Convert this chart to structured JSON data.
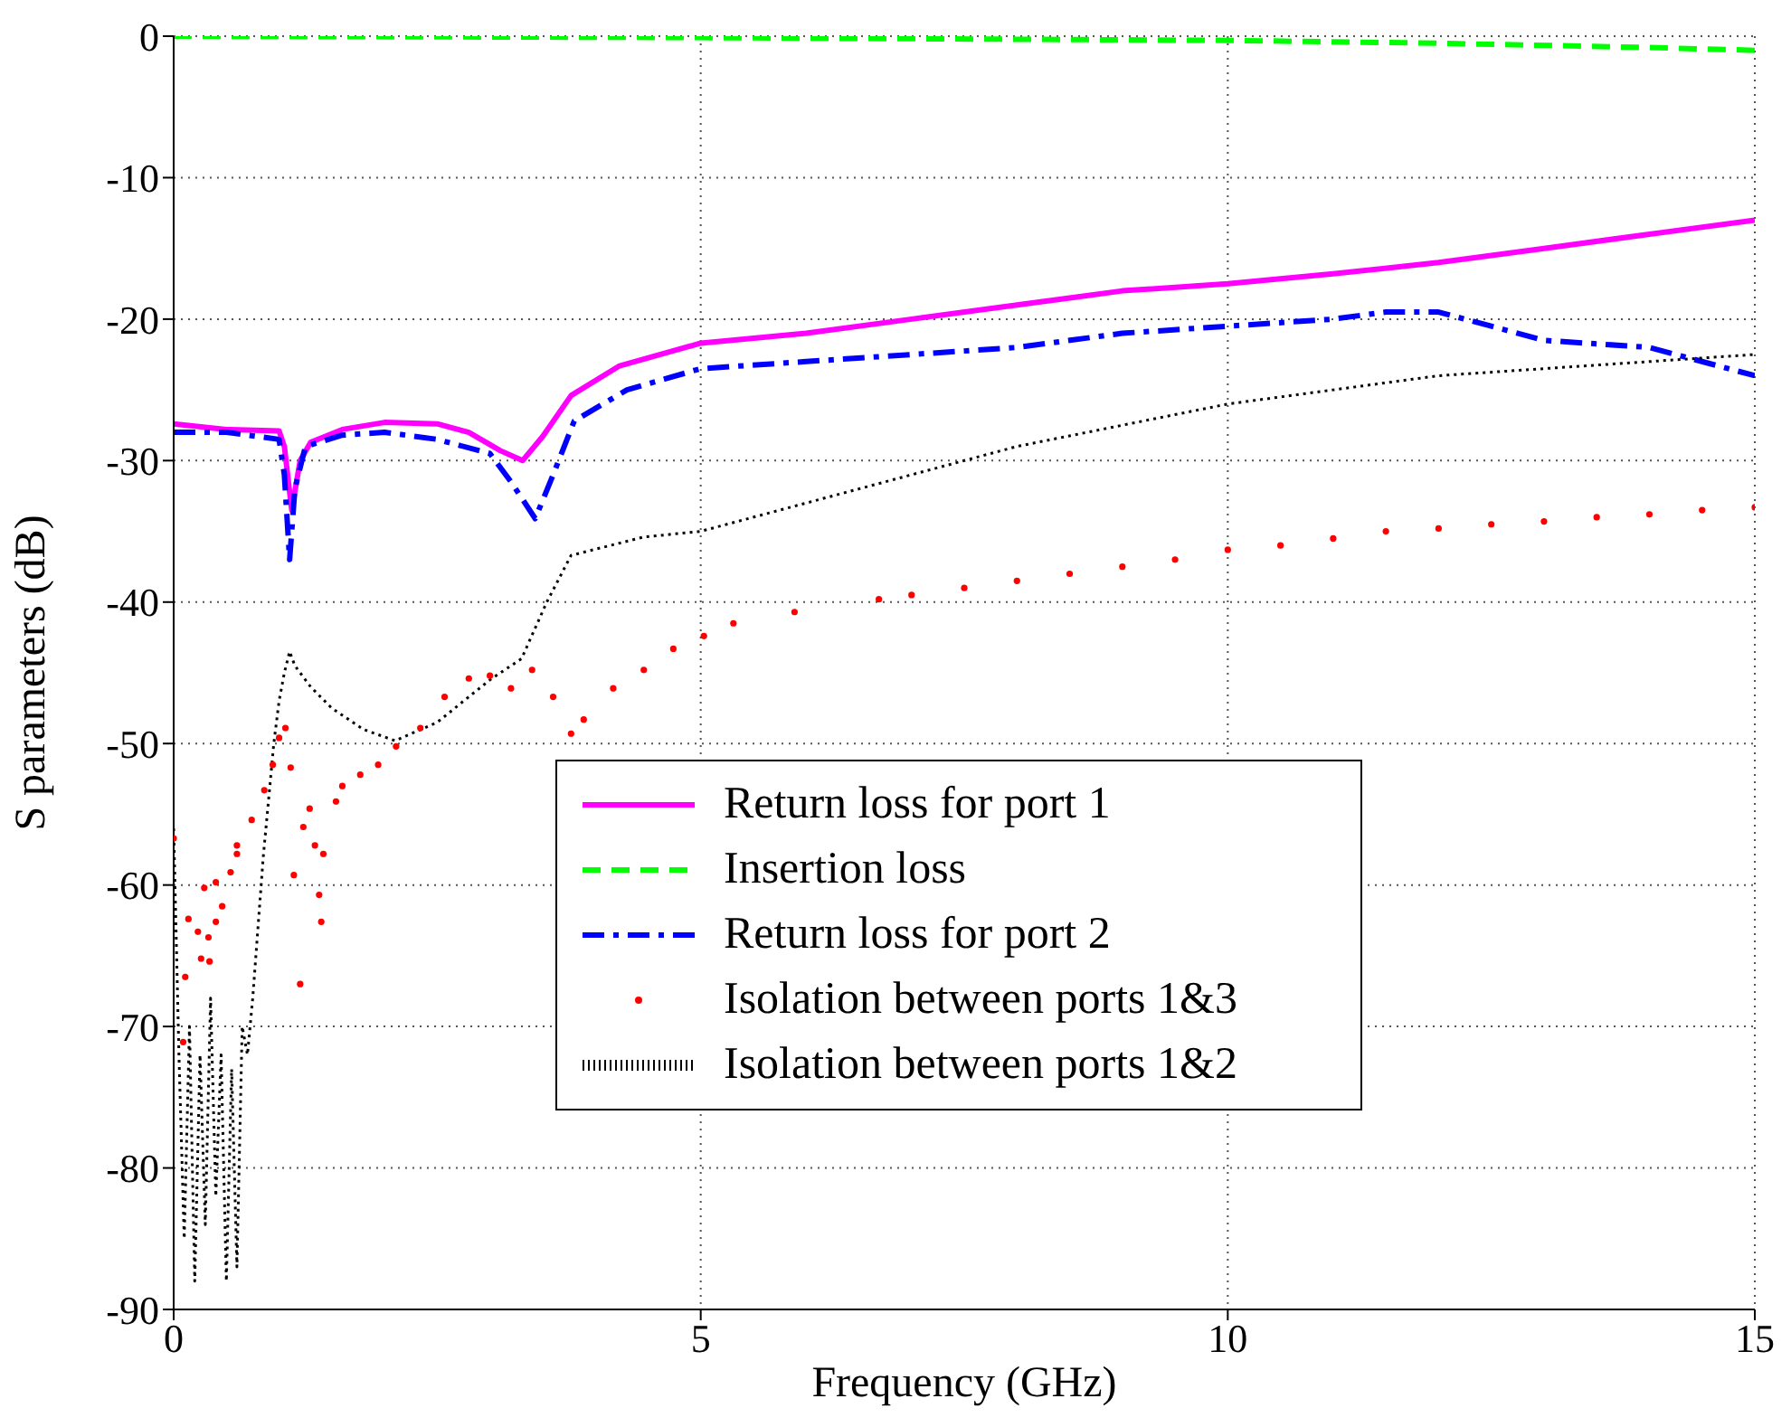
{
  "chart_data": {
    "type": "line",
    "xlabel": "Frequency (GHz)",
    "ylabel": "S parameters (dB)",
    "xlim": [
      0,
      15
    ],
    "xticks": [
      0,
      5,
      10,
      15
    ],
    "ylim": [
      -90,
      0
    ],
    "yticks": [
      -90,
      -80,
      -70,
      -60,
      -50,
      -40,
      -30,
      -20,
      -10,
      0
    ],
    "grid": true,
    "legend": "bottom",
    "series": [
      {
        "name": "Return loss for port 1",
        "line_style": "solid",
        "color": "#ff00ff",
        "x": [
          0,
          0.5,
          1.0,
          1.05,
          1.12,
          1.2,
          1.3,
          1.6,
          2.0,
          2.5,
          2.8,
          3.1,
          3.31,
          3.5,
          3.77,
          4.23,
          5,
          6,
          7,
          8,
          8.5,
          9,
          10,
          11,
          12,
          13,
          14,
          15
        ],
        "values": [
          -27.4,
          -27.8,
          -27.9,
          -29,
          -33.5,
          -30,
          -28.7,
          -27.8,
          -27.3,
          -27.4,
          -28,
          -29.3,
          -30,
          -28.3,
          -25.4,
          -23.3,
          -21.7,
          -21,
          -20,
          -19,
          -18.5,
          -18,
          -17.5,
          -16.8,
          -16,
          -15,
          -14,
          -13
        ]
      },
      {
        "name": "Insertion loss",
        "line_style": "dashed",
        "color": "#00ff00",
        "x": [
          0,
          5,
          10,
          12,
          14,
          15
        ],
        "values": [
          0,
          -0.1,
          -0.3,
          -0.5,
          -0.8,
          -1
        ]
      },
      {
        "name": "Return loss for port 2",
        "line_style": "dashdot",
        "color": "#0000ff",
        "x": [
          0,
          0.5,
          1.0,
          1.05,
          1.1,
          1.15,
          1.25,
          1.6,
          2.0,
          2.5,
          3.0,
          3.2,
          3.43,
          3.6,
          3.8,
          4.3,
          5,
          6,
          7,
          8,
          9,
          10,
          11,
          11.5,
          12,
          12.5,
          13,
          14,
          15
        ],
        "values": [
          -28,
          -28,
          -28.5,
          -31,
          -37,
          -32,
          -29,
          -28.2,
          -28,
          -28.5,
          -29.5,
          -31.5,
          -34.1,
          -31,
          -27.2,
          -25,
          -23.5,
          -23,
          -22.5,
          -22,
          -21,
          -20.5,
          -20,
          -19.5,
          -19.5,
          -20.5,
          -21.5,
          -22,
          -24
        ]
      },
      {
        "name": "Isolation between ports 1&3",
        "type": "scatter",
        "marker": "circle",
        "color": "#ff0000",
        "x": [
          0,
          0.09,
          0.11,
          0.14,
          0.23,
          0.26,
          0.29,
          0.33,
          0.34,
          0.4,
          0.4,
          0.46,
          0.54,
          0.6,
          0.6,
          0.74,
          0.86,
          0.94,
          1.0,
          1.06,
          1.11,
          1.14,
          1.2,
          1.23,
          1.29,
          1.34,
          1.38,
          1.4,
          1.42,
          1.54,
          1.6,
          1.77,
          1.94,
          2.11,
          2.34,
          2.57,
          2.8,
          3.0,
          3.2,
          3.4,
          3.6,
          3.77,
          3.89,
          4.17,
          4.46,
          4.74,
          5.03,
          5.31,
          5.89,
          6.69,
          7,
          7.5,
          8,
          8.5,
          9,
          9.5,
          10,
          10.5,
          11,
          11.5,
          12,
          12.5,
          13,
          13.5,
          14,
          14.5,
          15
        ],
        "values": [
          -56.7,
          -71.1,
          -66.5,
          -62.4,
          -63.3,
          -65.2,
          -60.2,
          -63.7,
          -65.4,
          -62.6,
          -59.8,
          -61.5,
          -59.1,
          -57.8,
          -57.2,
          -55.4,
          -53.3,
          -51.5,
          -49.6,
          -48.9,
          -51.7,
          -59.3,
          -67,
          -55.9,
          -54.6,
          -57.2,
          -60.7,
          -62.6,
          -57.8,
          -54.1,
          -53,
          -52.2,
          -51.5,
          -50.2,
          -48.9,
          -46.7,
          -45.4,
          -45.2,
          -46.1,
          -44.8,
          -46.7,
          -49.3,
          -48.3,
          -46.1,
          -44.8,
          -43.3,
          -42.4,
          -41.5,
          -40.7,
          -39.8,
          -39.5,
          -39,
          -38.5,
          -38,
          -37.5,
          -37,
          -36.3,
          -36,
          -35.5,
          -35,
          -34.8,
          -34.5,
          -34.3,
          -34,
          -33.8,
          -33.5,
          -33.3
        ]
      },
      {
        "name": "Isolation between ports 1&2",
        "line_style": "dotted",
        "color": "#000000",
        "x": [
          0,
          0.05,
          0.1,
          0.15,
          0.2,
          0.25,
          0.3,
          0.35,
          0.4,
          0.45,
          0.5,
          0.55,
          0.6,
          0.65,
          0.7,
          0.75,
          0.8,
          0.85,
          0.9,
          0.95,
          1.0,
          1.05,
          1.1,
          1.15,
          1.3,
          1.5,
          1.8,
          2.1,
          2.5,
          3.0,
          3.3,
          3.54,
          3.77,
          4.46,
          5,
          6,
          7,
          8,
          9,
          10,
          11,
          12,
          13,
          14,
          15
        ],
        "values": [
          -56,
          -72,
          -85,
          -70,
          -88,
          -72,
          -84,
          -68,
          -82,
          -72,
          -88,
          -73,
          -87,
          -70,
          -72,
          -68,
          -63,
          -58,
          -54,
          -50,
          -47,
          -45,
          -43.5,
          -44.5,
          -46,
          -47.5,
          -49,
          -49.8,
          -48.5,
          -45.5,
          -44,
          -40,
          -36.7,
          -35.4,
          -35,
          -33,
          -31,
          -29,
          -27.5,
          -26,
          -25,
          -24,
          -23.5,
          -23,
          -22.5
        ]
      }
    ]
  }
}
